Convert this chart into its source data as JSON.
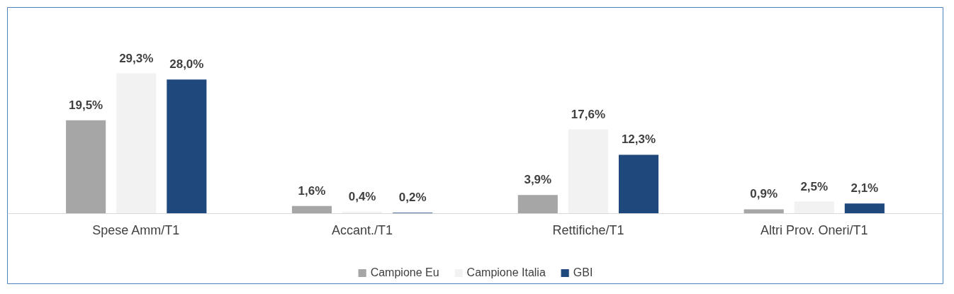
{
  "chart_data": {
    "type": "bar",
    "categories": [
      "Spese Amm/T1",
      "Accant./T1",
      "Rettifiche/T1",
      "Altri Prov. Oneri/T1"
    ],
    "series": [
      {
        "name": "Campione Eu",
        "color": "#a6a6a6",
        "values": [
          19.5,
          1.6,
          3.9,
          0.9
        ],
        "value_labels": [
          "19,5%",
          "1,6%",
          "3,9%",
          "0,9%"
        ]
      },
      {
        "name": "Campione Italia",
        "color": "#f2f2f2",
        "values": [
          29.3,
          0.4,
          17.6,
          2.5
        ],
        "value_labels": [
          "29,3%",
          "0,4%",
          "17,6%",
          "2,5%"
        ]
      },
      {
        "name": "GBI",
        "color": "#1f497d",
        "values": [
          28.0,
          0.2,
          12.3,
          2.1
        ],
        "value_labels": [
          "28,0%",
          "0,2%",
          "12,3%",
          "2,1%"
        ]
      }
    ],
    "legend": "bottom"
  }
}
